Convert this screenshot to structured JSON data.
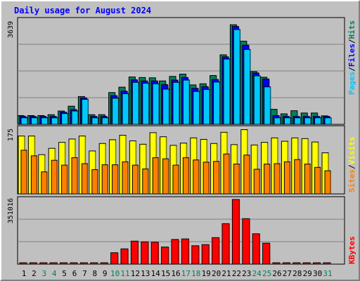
{
  "title": "Daily usage for August 2024",
  "colors": {
    "title": "#0000ff",
    "hits": "#00805c",
    "files": "#0000ff",
    "pages": "#00c8ff",
    "visits": "#ffff00",
    "sites": "#ff8000",
    "kbytes": "#ff0000",
    "weekend_label": "#00805c",
    "weekday_label": "#000000",
    "panel_bg": "#c0c0c0",
    "grid": "#808080"
  },
  "legend": {
    "hits": "Hits",
    "files": "Files",
    "pages": "Pages",
    "visits": "Visits",
    "sites": "Sites",
    "kbytes": "KBytes",
    "sep": "/"
  },
  "chart_data": [
    {
      "type": "bar",
      "panel": "hits-files-pages",
      "ylabel": "3639",
      "ylim": [
        0,
        3639
      ],
      "categories": [
        "1",
        "2",
        "3",
        "4",
        "5",
        "6",
        "7",
        "8",
        "9",
        "10",
        "11",
        "12",
        "13",
        "14",
        "15",
        "16",
        "17",
        "18",
        "19",
        "20",
        "21",
        "22",
        "23",
        "24",
        "25",
        "26",
        "27",
        "28",
        "29",
        "30",
        "31"
      ],
      "weekend_days": [
        "3",
        "4",
        "10",
        "11",
        "17",
        "18",
        "24",
        "25",
        "31"
      ],
      "series": [
        {
          "name": "Hits",
          "values": [
            310,
            310,
            310,
            340,
            470,
            640,
            980,
            340,
            340,
            1120,
            1310,
            1670,
            1650,
            1640,
            1530,
            1690,
            1770,
            1390,
            1430,
            1720,
            2450,
            3510,
            2930,
            1860,
            1660,
            530,
            370,
            480,
            400,
            400,
            300
          ]
        },
        {
          "name": "Files",
          "values": [
            280,
            280,
            280,
            280,
            430,
            520,
            930,
            280,
            280,
            1010,
            1170,
            1570,
            1530,
            1530,
            1400,
            1560,
            1650,
            1270,
            1330,
            1580,
            2380,
            3450,
            2790,
            1810,
            1600,
            310,
            280,
            280,
            280,
            280,
            280
          ]
        },
        {
          "name": "Pages",
          "values": [
            230,
            230,
            230,
            230,
            380,
            470,
            880,
            230,
            230,
            920,
            1080,
            1480,
            1450,
            1430,
            1240,
            1480,
            1560,
            1160,
            1230,
            1490,
            2300,
            3340,
            2640,
            1710,
            1320,
            230,
            230,
            230,
            230,
            230,
            230
          ]
        }
      ]
    },
    {
      "type": "bar",
      "panel": "visits-sites",
      "ylabel": "175",
      "ylim": [
        0,
        175
      ],
      "categories": [
        "1",
        "2",
        "3",
        "4",
        "5",
        "6",
        "7",
        "8",
        "9",
        "10",
        "11",
        "12",
        "13",
        "14",
        "15",
        "16",
        "17",
        "18",
        "19",
        "20",
        "21",
        "22",
        "23",
        "24",
        "25",
        "26",
        "27",
        "28",
        "29",
        "30",
        "31"
      ],
      "series": [
        {
          "name": "Visits",
          "values": [
            155,
            155,
            105,
            122,
            138,
            147,
            155,
            115,
            135,
            145,
            157,
            142,
            133,
            164,
            153,
            130,
            136,
            150,
            146,
            135,
            165,
            132,
            172,
            131,
            138,
            150,
            141,
            150,
            148,
            139,
            110
          ]
        },
        {
          "name": "Sites",
          "values": [
            117,
            102,
            59,
            90,
            77,
            97,
            81,
            65,
            78,
            78,
            86,
            77,
            67,
            97,
            94,
            77,
            97,
            91,
            85,
            87,
            107,
            80,
            104,
            66,
            80,
            81,
            86,
            92,
            80,
            71,
            62
          ]
        }
      ]
    },
    {
      "type": "bar",
      "panel": "kbytes",
      "ylabel": "351016",
      "ylim": [
        0,
        351016
      ],
      "categories": [
        "1",
        "2",
        "3",
        "4",
        "5",
        "6",
        "7",
        "8",
        "9",
        "10",
        "11",
        "12",
        "13",
        "14",
        "15",
        "16",
        "17",
        "18",
        "19",
        "20",
        "21",
        "22",
        "23",
        "24",
        "25",
        "26",
        "27",
        "28",
        "29",
        "30",
        "31"
      ],
      "series": [
        {
          "name": "KBytes",
          "values": [
            0,
            0,
            0,
            0,
            0,
            0,
            0,
            0,
            0,
            62000,
            83000,
            125000,
            121000,
            119000,
            93000,
            134000,
            137000,
            100000,
            106000,
            144000,
            220000,
            351016,
            247000,
            165000,
            114000,
            0,
            0,
            0,
            0,
            0,
            0
          ]
        }
      ]
    }
  ]
}
